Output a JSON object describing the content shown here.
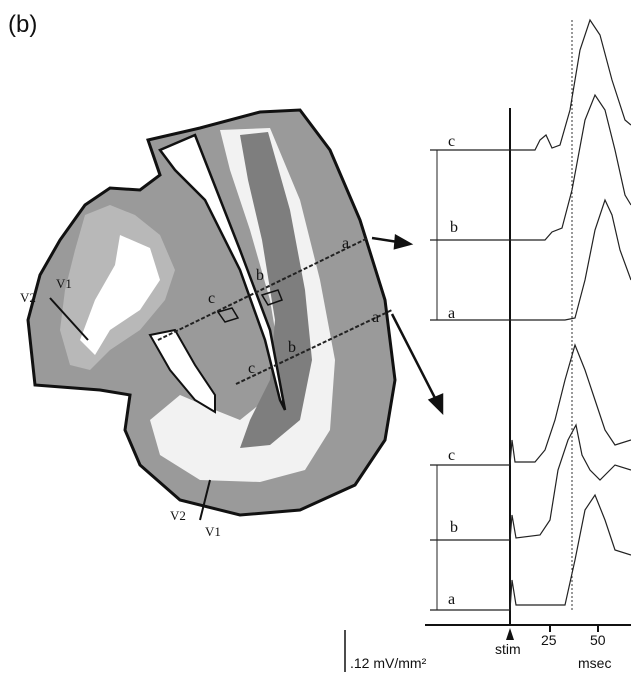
{
  "panel_label": "(b)",
  "anatomy": {
    "boundary_labels": [
      "V2",
      "V1",
      "V2",
      "V1"
    ],
    "upper_section": [
      "a",
      "b",
      "c"
    ],
    "lower_section": [
      "a",
      "b",
      "c"
    ]
  },
  "traces": {
    "upper_group": [
      "c",
      "b",
      "a"
    ],
    "lower_group": [
      "c",
      "b",
      "a"
    ]
  },
  "time_axis": {
    "stimulus": "stim",
    "ticks": [
      "25",
      "50"
    ],
    "unit": "msec"
  },
  "scale_bar": ".12 mV/mm²"
}
